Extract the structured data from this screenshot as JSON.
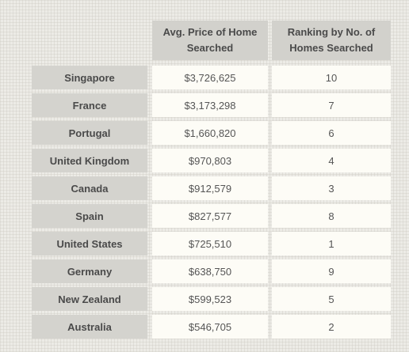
{
  "table": {
    "headers": [
      "Avg. Price of Home Searched",
      "Ranking by No. of Homes Searched"
    ],
    "rows": [
      {
        "country": "Singapore",
        "price": "$3,726,625",
        "rank": "10"
      },
      {
        "country": "France",
        "price": "$3,173,298",
        "rank": "7"
      },
      {
        "country": "Portugal",
        "price": "$1,660,820",
        "rank": "6"
      },
      {
        "country": "United Kingdom",
        "price": "$970,803",
        "rank": "4"
      },
      {
        "country": "Canada",
        "price": "$912,579",
        "rank": "3"
      },
      {
        "country": "Spain",
        "price": "$827,577",
        "rank": "8"
      },
      {
        "country": "United States",
        "price": "$725,510",
        "rank": "1"
      },
      {
        "country": "Germany",
        "price": "$638,750",
        "rank": "9"
      },
      {
        "country": "New Zealand",
        "price": "$599,523",
        "rank": "5"
      },
      {
        "country": "Australia",
        "price": "$546,705",
        "rank": "2"
      }
    ]
  }
}
